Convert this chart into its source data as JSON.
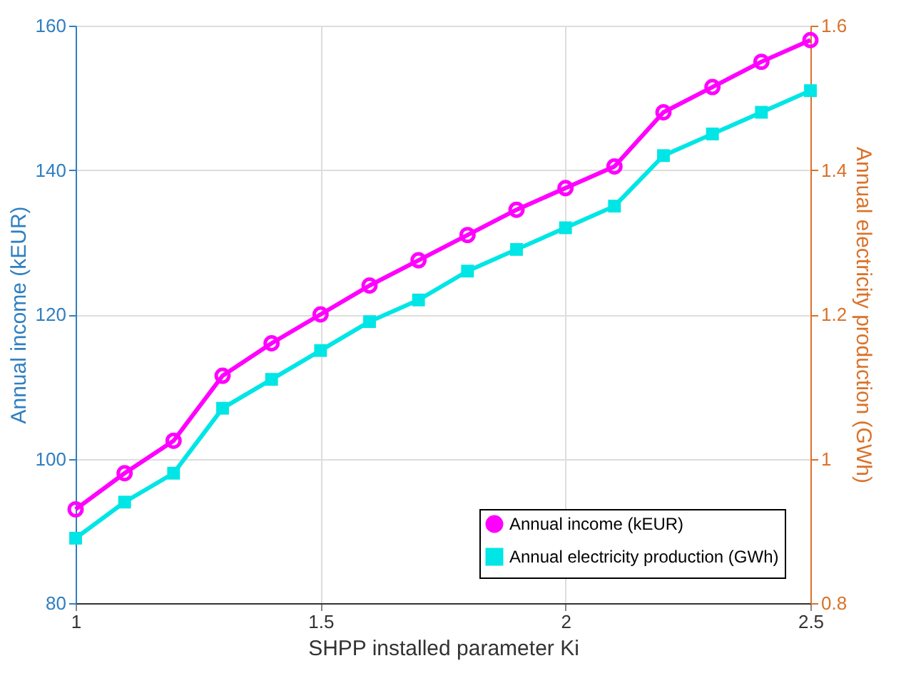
{
  "chart_data": {
    "type": "line",
    "xlabel": "SHPP installed parameter Ki",
    "ylabel": "Annual income (kEUR)",
    "y2label": "Annual electricity production (GWh)",
    "x": [
      1,
      1.1,
      1.2,
      1.3,
      1.4,
      1.5,
      1.6,
      1.7,
      1.8,
      1.9,
      2,
      2.1,
      2.2,
      2.3,
      2.4,
      2.5
    ],
    "series": [
      {
        "name": "Annual income (kEUR)",
        "color": "#ff00ff",
        "marker": "circle",
        "values": [
          93,
          98,
          102.5,
          111.5,
          116,
          120,
          124,
          127.5,
          131,
          134.5,
          137.5,
          140.5,
          148,
          151.5,
          155,
          158
        ]
      },
      {
        "name": "Annual electricity production (GWh)",
        "color": "#00e5e5",
        "marker": "square",
        "axis": "y2",
        "values": [
          0.89,
          0.94,
          0.98,
          1.07,
          1.11,
          1.15,
          1.19,
          1.22,
          1.26,
          1.29,
          1.32,
          1.35,
          1.42,
          1.45,
          1.48,
          1.51
        ]
      }
    ],
    "xlim": [
      1,
      2.5
    ],
    "xticks": [
      1,
      1.5,
      2,
      2.5
    ],
    "ylim": [
      80,
      160
    ],
    "yticks": [
      80,
      100,
      120,
      140,
      160
    ],
    "y2lim": [
      0.8,
      1.6
    ],
    "y2ticks": [
      0.8,
      1,
      1.2,
      1.4,
      1.6
    ],
    "grid": true,
    "legend": "bottom right",
    "line_style": "solid"
  }
}
